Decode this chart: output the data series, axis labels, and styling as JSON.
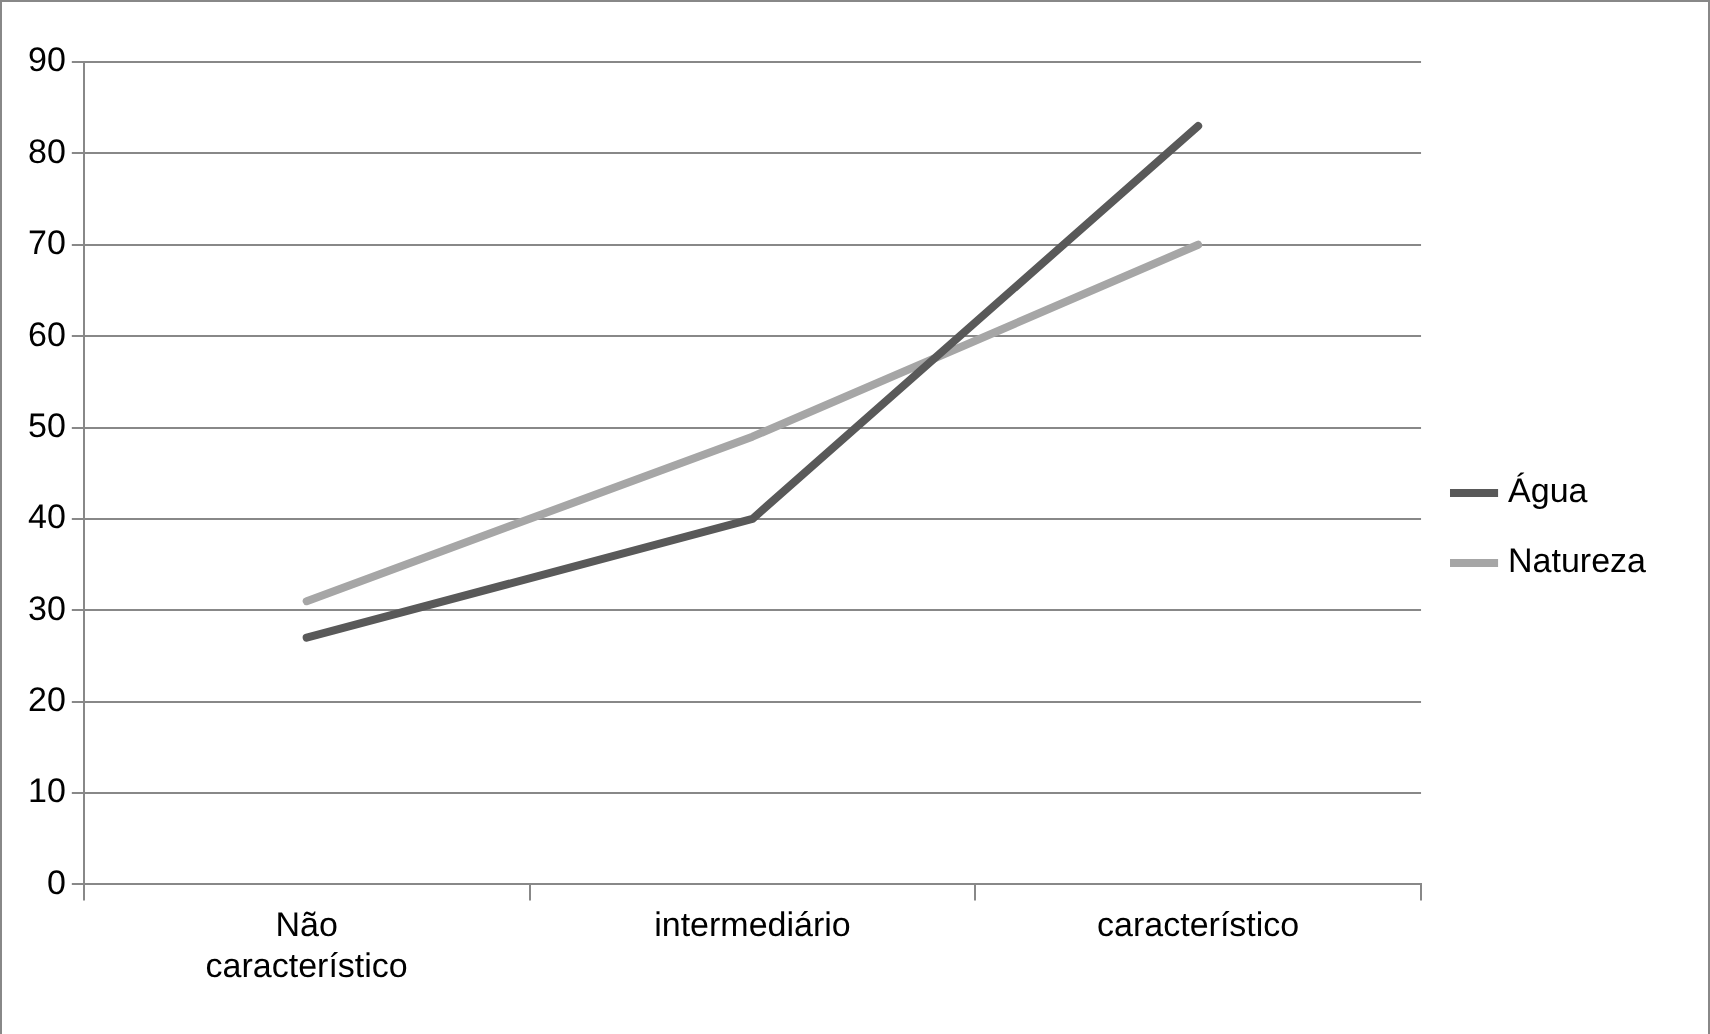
{
  "chart_data": {
    "type": "line",
    "categories": [
      "Não característico",
      "intermediário",
      "característico"
    ],
    "series": [
      {
        "name": "Água",
        "color": "#595959",
        "values": [
          27,
          40,
          83
        ]
      },
      {
        "name": "Natureza",
        "color": "#a6a6a6",
        "values": [
          31,
          49,
          70
        ]
      }
    ],
    "ylim": [
      0,
      90
    ],
    "yticks": [
      0,
      10,
      20,
      30,
      40,
      50,
      60,
      70,
      80,
      90
    ],
    "grid": "y",
    "legend": "right",
    "marker": "none"
  }
}
